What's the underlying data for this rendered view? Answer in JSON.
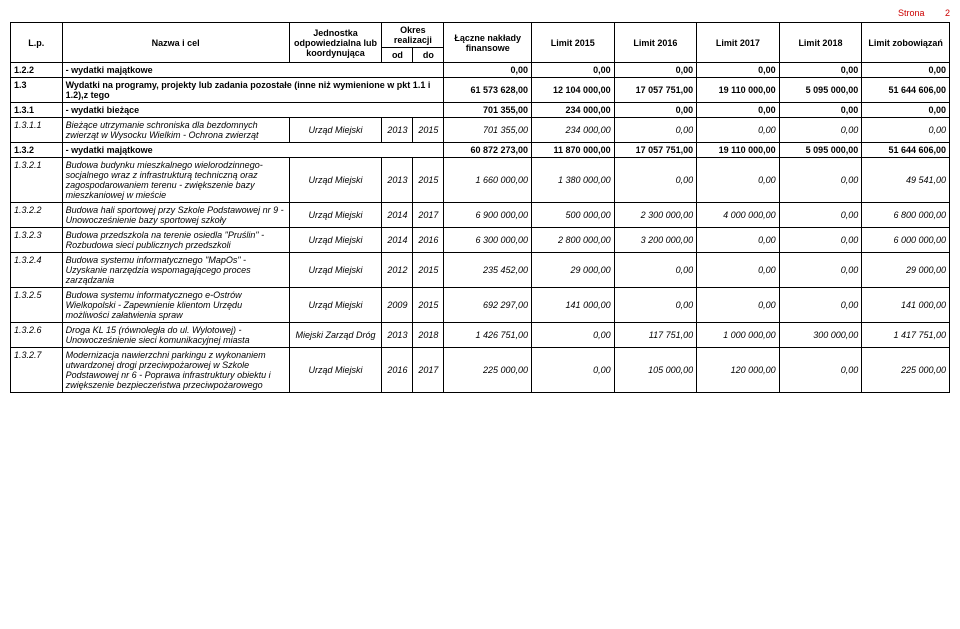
{
  "page": {
    "label": "Strona",
    "number": "2"
  },
  "headers": {
    "lp": "L.p.",
    "name": "Nazwa i cel",
    "unit": "Jednostka odpowiedzialna lub koordynująca",
    "period": "Okres realizacji",
    "od": "od",
    "do": "do",
    "fin": "Łączne nakłady finansowe",
    "l2015": "Limit 2015",
    "l2016": "Limit 2016",
    "l2017": "Limit 2017",
    "l2018": "Limit 2018",
    "lz": "Limit zobowiązań"
  },
  "rows": [
    {
      "type": "sum",
      "lp": "1.2.2",
      "name": "- wydatki majątkowe",
      "fin": "0,00",
      "l2015": "0,00",
      "l2016": "0,00",
      "l2017": "0,00",
      "l2018": "0,00",
      "lz": "0,00"
    },
    {
      "type": "sum",
      "lp": "1.3",
      "name": "Wydatki na programy, projekty lub zadania pozostałe (inne niż wymienione w pkt 1.1 i 1.2),z tego",
      "fin": "61 573 628,00",
      "l2015": "12 104 000,00",
      "l2016": "17 057 751,00",
      "l2017": "19 110 000,00",
      "l2018": "5 095 000,00",
      "lz": "51 644 606,00"
    },
    {
      "type": "sum",
      "lp": "1.3.1",
      "name": "- wydatki bieżące",
      "fin": "701 355,00",
      "l2015": "234 000,00",
      "l2016": "0,00",
      "l2017": "0,00",
      "l2018": "0,00",
      "lz": "0,00"
    },
    {
      "type": "item",
      "lp": "1.3.1.1",
      "name": "Bieżące utrzymanie schroniska dla bezdomnych zwierząt w Wysocku Wielkim - Ochrona zwierząt",
      "unit": "Urząd Miejski",
      "od": "2013",
      "do": "2015",
      "fin": "701 355,00",
      "l2015": "234 000,00",
      "l2016": "0,00",
      "l2017": "0,00",
      "l2018": "0,00",
      "lz": "0,00"
    },
    {
      "type": "sum",
      "lp": "1.3.2",
      "name": "- wydatki majątkowe",
      "fin": "60 872 273,00",
      "l2015": "11 870 000,00",
      "l2016": "17 057 751,00",
      "l2017": "19 110 000,00",
      "l2018": "5 095 000,00",
      "lz": "51 644 606,00"
    },
    {
      "type": "item",
      "lp": "1.3.2.1",
      "name": "Budowa budynku mieszkalnego wielorodzinnego-socjalnego wraz z infrastrukturą techniczną oraz zagospodarowaniem terenu - zwiększenie bazy mieszkaniowej w mieście",
      "unit": "Urząd Miejski",
      "od": "2013",
      "do": "2015",
      "fin": "1 660 000,00",
      "l2015": "1 380 000,00",
      "l2016": "0,00",
      "l2017": "0,00",
      "l2018": "0,00",
      "lz": "49 541,00"
    },
    {
      "type": "item",
      "lp": "1.3.2.2",
      "name": "Budowa hali sportowej przy Szkole Podstawowej nr 9 - Unowocześnienie bazy sportowej szkoły",
      "unit": "Urząd Miejski",
      "od": "2014",
      "do": "2017",
      "fin": "6 900 000,00",
      "l2015": "500 000,00",
      "l2016": "2 300 000,00",
      "l2017": "4 000 000,00",
      "l2018": "0,00",
      "lz": "6 800 000,00"
    },
    {
      "type": "item",
      "lp": "1.3.2.3",
      "name": "Budowa przedszkola na terenie osiedla \"Pruślin\" - Rozbudowa sieci publicznych przedszkoli",
      "unit": "Urząd Miejski",
      "od": "2014",
      "do": "2016",
      "fin": "6 300 000,00",
      "l2015": "2 800 000,00",
      "l2016": "3 200 000,00",
      "l2017": "0,00",
      "l2018": "0,00",
      "lz": "6 000 000,00"
    },
    {
      "type": "item",
      "lp": "1.3.2.4",
      "name": "Budowa systemu informatycznego \"MapOs\" - Uzyskanie narzędzia wspomagającego proces zarządzania",
      "unit": "Urząd Miejski",
      "od": "2012",
      "do": "2015",
      "fin": "235 452,00",
      "l2015": "29 000,00",
      "l2016": "0,00",
      "l2017": "0,00",
      "l2018": "0,00",
      "lz": "29 000,00"
    },
    {
      "type": "item",
      "lp": "1.3.2.5",
      "name": "Budowa systemu informatycznego e-Ostrów Wielkopolski - Zapewnienie klientom Urzędu możliwości załatwienia spraw",
      "unit": "Urząd Miejski",
      "od": "2009",
      "do": "2015",
      "fin": "692 297,00",
      "l2015": "141 000,00",
      "l2016": "0,00",
      "l2017": "0,00",
      "l2018": "0,00",
      "lz": "141 000,00"
    },
    {
      "type": "item",
      "lp": "1.3.2.6",
      "name": "Droga KL 15 (równoległa do ul. Wylotowej) - Unowocześnienie sieci komunikacyjnej miasta",
      "unit": "Miejski Zarząd Dróg",
      "od": "2013",
      "do": "2018",
      "fin": "1 426 751,00",
      "l2015": "0,00",
      "l2016": "117 751,00",
      "l2017": "1 000 000,00",
      "l2018": "300 000,00",
      "lz": "1 417 751,00"
    },
    {
      "type": "item",
      "lp": "1.3.2.7",
      "name": "Modernizacja nawierzchni parkingu z wykonaniem utwardzonej drogi przeciwpożarowej w Szkole Podstawowej nr 6 - Poprawa infrastruktury obiektu i zwiększenie bezpieczeństwa przeciwpożarowego",
      "unit": "Urząd Miejski",
      "od": "2016",
      "do": "2017",
      "fin": "225 000,00",
      "l2015": "0,00",
      "l2016": "105 000,00",
      "l2017": "120 000,00",
      "l2018": "0,00",
      "lz": "225 000,00"
    }
  ]
}
